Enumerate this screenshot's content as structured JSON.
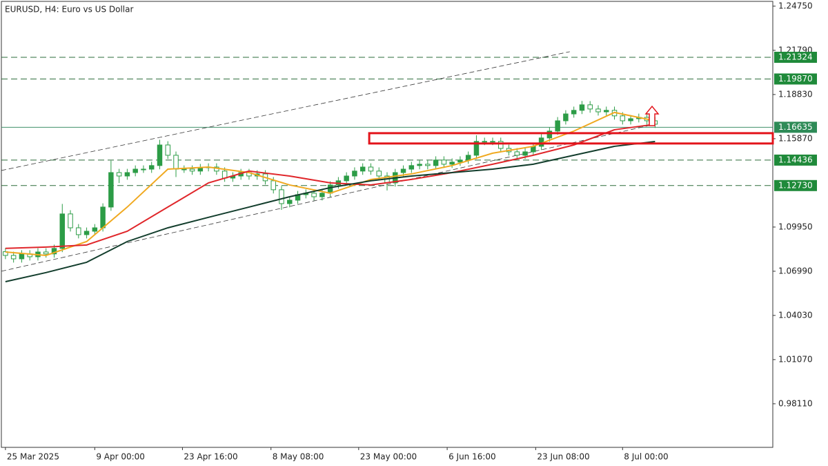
{
  "chart_data": {
    "type": "candlestick",
    "title": "EURUSD, H4:  Euro vs US Dollar",
    "color": "#2c9c46",
    "xlim": [
      -0.5,
      94.5
    ],
    "xticks": [
      {
        "value": 0,
        "label": "25 Mar 2025"
      },
      {
        "value": 11,
        "label": "9 Apr 00:00"
      },
      {
        "value": 21.8,
        "label": "23 Apr 16:00"
      },
      {
        "value": 32.7,
        "label": "8 May 08:00"
      },
      {
        "value": 43.5,
        "label": "23 May 00:00"
      },
      {
        "value": 54.4,
        "label": "6 Jun 16:00"
      },
      {
        "value": 65.3,
        "label": "23 Jun 08:00"
      },
      {
        "value": 76,
        "label": "8 Jul 00:00"
      }
    ],
    "ylim": [
      0.9519,
      1.2507
    ],
    "yticks": [
      {
        "value": 1.2475,
        "label": "1.24750"
      },
      {
        "value": 1.2179,
        "label": "1.21790"
      },
      {
        "value": 1.1883,
        "label": "1.18830"
      },
      {
        "value": 1.1587,
        "label": "1.15870"
      },
      {
        "value": 1.0995,
        "label": "1.09950"
      },
      {
        "value": 1.0699,
        "label": "1.06990"
      },
      {
        "value": 1.0403,
        "label": "1.04030"
      },
      {
        "value": 1.0107,
        "label": "1.01070"
      },
      {
        "value": 0.9811,
        "label": "0.98110"
      }
    ],
    "open": [
      1.083,
      1.0805,
      1.0782,
      1.0815,
      1.0796,
      1.0828,
      1.0815,
      1.0852,
      1.1083,
      1.099,
      1.0944,
      1.0967,
      1.099,
      1.1129,
      1.136,
      1.1337,
      1.136,
      1.1383,
      1.1383,
      1.1407,
      1.1545,
      1.1476,
      1.1383,
      1.1383,
      1.137,
      1.1393,
      1.1397,
      1.137,
      1.1323,
      1.1337,
      1.136,
      1.1337,
      1.1351,
      1.1305,
      1.1245,
      1.1152,
      1.1175,
      1.1212,
      1.1222,
      1.1198,
      1.1222,
      1.1277,
      1.1305,
      1.1337,
      1.137,
      1.1397,
      1.137,
      1.1337,
      1.1291,
      1.136,
      1.1383,
      1.1407,
      1.1416,
      1.1407,
      1.1444,
      1.1416,
      1.143,
      1.1444,
      1.1476,
      1.1569,
      1.1569,
      1.1569,
      1.1522,
      1.1499,
      1.1476,
      1.1499,
      1.1536,
      1.1592,
      1.1638,
      1.1707,
      1.1753,
      1.1777,
      1.1814,
      1.1786,
      1.1767,
      1.1777,
      1.174,
      1.1707,
      1.1721,
      1.173,
      1.1707
    ],
    "high": [
      1.0855,
      1.083,
      1.084,
      1.084,
      1.0853,
      1.0853,
      1.0877,
      1.115,
      1.1108,
      1.1015,
      1.0992,
      1.1015,
      1.1154,
      1.144,
      1.1385,
      1.1385,
      1.1408,
      1.1408,
      1.1432,
      1.158,
      1.157,
      1.1501,
      1.1408,
      1.1408,
      1.1418,
      1.1422,
      1.1422,
      1.1395,
      1.1362,
      1.1385,
      1.1385,
      1.1376,
      1.1376,
      1.133,
      1.127,
      1.12,
      1.1237,
      1.1247,
      1.1247,
      1.1247,
      1.1302,
      1.133,
      1.1362,
      1.1395,
      1.1422,
      1.1422,
      1.1395,
      1.1362,
      1.1385,
      1.1408,
      1.1432,
      1.1441,
      1.1441,
      1.1469,
      1.1469,
      1.1455,
      1.1469,
      1.1501,
      1.161,
      1.1594,
      1.1594,
      1.1594,
      1.1547,
      1.1524,
      1.1524,
      1.1561,
      1.1617,
      1.1663,
      1.1732,
      1.1778,
      1.1802,
      1.184,
      1.1839,
      1.1811,
      1.1802,
      1.1802,
      1.1765,
      1.1746,
      1.1755,
      1.1755,
      1.1732
    ],
    "low": [
      1.078,
      1.0757,
      1.0757,
      1.0771,
      1.0771,
      1.079,
      1.079,
      1.0827,
      1.0965,
      1.0919,
      1.0919,
      1.0942,
      1.0965,
      1.1104,
      1.129,
      1.1312,
      1.1335,
      1.1358,
      1.1358,
      1.1382,
      1.1451,
      1.133,
      1.1358,
      1.1345,
      1.1345,
      1.1368,
      1.1345,
      1.1298,
      1.1298,
      1.1312,
      1.1312,
      1.1312,
      1.128,
      1.122,
      1.111,
      1.1127,
      1.115,
      1.1187,
      1.1173,
      1.1173,
      1.1197,
      1.1252,
      1.128,
      1.1312,
      1.1345,
      1.1345,
      1.1312,
      1.124,
      1.1266,
      1.1335,
      1.1358,
      1.1382,
      1.1382,
      1.1382,
      1.1391,
      1.1391,
      1.1405,
      1.1419,
      1.1451,
      1.1544,
      1.1544,
      1.1497,
      1.1474,
      1.1451,
      1.1451,
      1.1474,
      1.1511,
      1.1567,
      1.1613,
      1.1682,
      1.1728,
      1.1752,
      1.1761,
      1.1742,
      1.1742,
      1.1715,
      1.1682,
      1.1682,
      1.1696,
      1.1682,
      1.1659
    ],
    "close": [
      1.0805,
      1.0782,
      1.0815,
      1.0796,
      1.0828,
      1.0815,
      1.0852,
      1.1083,
      1.099,
      1.0944,
      1.0967,
      1.099,
      1.1129,
      1.136,
      1.1337,
      1.136,
      1.1383,
      1.1383,
      1.1407,
      1.1545,
      1.1476,
      1.1383,
      1.1383,
      1.137,
      1.1393,
      1.1397,
      1.137,
      1.1323,
      1.1337,
      1.136,
      1.1337,
      1.1351,
      1.1305,
      1.1245,
      1.1152,
      1.1175,
      1.1212,
      1.1222,
      1.1198,
      1.1222,
      1.1277,
      1.1305,
      1.1337,
      1.137,
      1.1397,
      1.137,
      1.1337,
      1.1291,
      1.136,
      1.1383,
      1.1407,
      1.1416,
      1.1407,
      1.1444,
      1.1416,
      1.143,
      1.1444,
      1.1476,
      1.1569,
      1.1569,
      1.1569,
      1.1522,
      1.1499,
      1.1476,
      1.1499,
      1.1536,
      1.1592,
      1.1638,
      1.1707,
      1.1753,
      1.1777,
      1.1814,
      1.1786,
      1.1767,
      1.1777,
      1.174,
      1.1707,
      1.1721,
      1.173,
      1.1707,
      1.1684
    ],
    "series": [
      {
        "color": "#f0a920",
        "x": [
          0,
          5,
          10,
          15,
          20,
          25,
          30,
          35,
          40,
          45,
          50,
          55,
          60,
          65,
          70,
          75,
          80
        ],
        "values": [
          1.0828,
          1.0805,
          1.0898,
          1.1129,
          1.1383,
          1.1397,
          1.136,
          1.1277,
          1.1222,
          1.1314,
          1.1351,
          1.1407,
          1.149,
          1.1536,
          1.1638,
          1.1763,
          1.1707
        ]
      },
      {
        "color": "#e0262a",
        "x": [
          0,
          5,
          10,
          15,
          20,
          25,
          30,
          35,
          40,
          45,
          50,
          55,
          60,
          65,
          70,
          75,
          80
        ],
        "values": [
          1.0852,
          1.0861,
          1.0875,
          1.0967,
          1.1129,
          1.1291,
          1.137,
          1.1337,
          1.1291,
          1.1277,
          1.1314,
          1.136,
          1.1416,
          1.1476,
          1.1545,
          1.1647,
          1.1684
        ]
      },
      {
        "color": "#123d2c",
        "x": [
          0,
          5,
          10,
          15,
          20,
          25,
          30,
          35,
          40,
          45,
          50,
          55,
          60,
          65,
          70,
          75,
          80
        ],
        "values": [
          1.0629,
          1.069,
          1.0759,
          1.0898,
          1.099,
          1.106,
          1.1129,
          1.1198,
          1.1259,
          1.1305,
          1.1337,
          1.136,
          1.1383,
          1.1416,
          1.1476,
          1.1536,
          1.1568
        ]
      }
    ],
    "trendlines": [
      {
        "x": [
          -0.5,
          69.5
        ],
        "values": [
          1.1374,
          1.217
        ]
      },
      {
        "x": [
          -0.5,
          80
        ],
        "values": [
          1.0699,
          1.1684
        ]
      }
    ],
    "levels": [
      {
        "value": 1.21324,
        "style": "dashed"
      },
      {
        "value": 1.1987,
        "label": "1.19870",
        "style": "dashed"
      },
      {
        "value": 1.16635,
        "style": "solid"
      },
      {
        "value": 1.14436,
        "style": "dashed"
      },
      {
        "value": 1.1273,
        "label": "1.12730",
        "style": "dashed"
      }
    ],
    "zone": {
      "x": 44.8,
      "high": 1.1624,
      "low": 1.1555,
      "color": "#e3141b"
    }
  }
}
